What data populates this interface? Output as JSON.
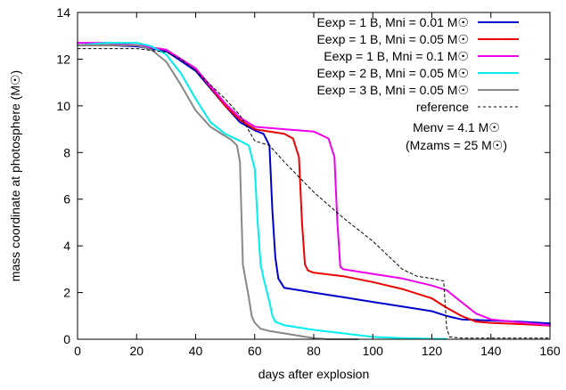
{
  "chart_data": {
    "type": "line",
    "xlabel": "days after explosion",
    "ylabel": "mass coordinate at photosphere (M☉)",
    "xlim": [
      0,
      160
    ],
    "ylim": [
      0,
      14
    ],
    "x_ticks": [
      "0",
      "20",
      "40",
      "60",
      "80",
      "100",
      "120",
      "140",
      "160"
    ],
    "y_ticks": [
      "0",
      "2",
      "4",
      "6",
      "8",
      "10",
      "12",
      "14"
    ],
    "grid": false,
    "legend_position": "top-right",
    "annotation": {
      "line1": "Menv = 4.1 M☉",
      "line2": "(Mzams = 25 M☉)"
    },
    "series": [
      {
        "name": "Eexp = 1 B, Mni = 0.01 M☉",
        "color": "#0000cc",
        "dash": "solid",
        "points": [
          [
            0,
            12.6
          ],
          [
            10,
            12.6
          ],
          [
            20,
            12.55
          ],
          [
            30,
            12.35
          ],
          [
            40,
            11.5
          ],
          [
            50,
            10.0
          ],
          [
            55,
            9.3
          ],
          [
            60,
            8.95
          ],
          [
            63,
            8.8
          ],
          [
            65,
            8.3
          ],
          [
            66,
            5.5
          ],
          [
            67,
            3.5
          ],
          [
            68,
            2.6
          ],
          [
            70,
            2.2
          ],
          [
            75,
            2.1
          ],
          [
            80,
            2.0
          ],
          [
            90,
            1.8
          ],
          [
            100,
            1.6
          ],
          [
            110,
            1.4
          ],
          [
            120,
            1.2
          ],
          [
            125,
            1.0
          ],
          [
            130,
            0.85
          ],
          [
            140,
            0.8
          ],
          [
            150,
            0.75
          ],
          [
            160,
            0.68
          ]
        ]
      },
      {
        "name": "Eexp = 1 B, Mni = 0.05 M☉",
        "color": "#ee0000",
        "dash": "solid",
        "points": [
          [
            0,
            12.6
          ],
          [
            10,
            12.6
          ],
          [
            20,
            12.6
          ],
          [
            30,
            12.4
          ],
          [
            40,
            11.6
          ],
          [
            50,
            10.0
          ],
          [
            55,
            9.4
          ],
          [
            60,
            9.0
          ],
          [
            65,
            8.9
          ],
          [
            70,
            8.8
          ],
          [
            73,
            8.6
          ],
          [
            75,
            7.8
          ],
          [
            76,
            5.0
          ],
          [
            77,
            3.2
          ],
          [
            78,
            2.95
          ],
          [
            80,
            2.85
          ],
          [
            90,
            2.7
          ],
          [
            100,
            2.45
          ],
          [
            110,
            2.15
          ],
          [
            120,
            1.75
          ],
          [
            125,
            1.35
          ],
          [
            130,
            1.0
          ],
          [
            135,
            0.75
          ],
          [
            140,
            0.7
          ],
          [
            150,
            0.65
          ],
          [
            160,
            0.58
          ]
        ]
      },
      {
        "name": "Eexp = 1 B, Mni = 0.1 M☉",
        "color": "#ee00ee",
        "dash": "solid",
        "points": [
          [
            0,
            12.7
          ],
          [
            10,
            12.7
          ],
          [
            20,
            12.6
          ],
          [
            30,
            12.4
          ],
          [
            40,
            11.6
          ],
          [
            50,
            10.1
          ],
          [
            55,
            9.5
          ],
          [
            60,
            9.1
          ],
          [
            70,
            9.0
          ],
          [
            80,
            8.9
          ],
          [
            85,
            8.6
          ],
          [
            87,
            7.8
          ],
          [
            88,
            5.0
          ],
          [
            89,
            3.1
          ],
          [
            90,
            3.0
          ],
          [
            100,
            2.8
          ],
          [
            110,
            2.6
          ],
          [
            120,
            2.3
          ],
          [
            125,
            2.1
          ],
          [
            130,
            1.6
          ],
          [
            135,
            1.1
          ],
          [
            140,
            0.85
          ],
          [
            150,
            0.72
          ],
          [
            160,
            0.6
          ]
        ]
      },
      {
        "name": "Eexp = 2 B, Mni = 0.05 M☉",
        "color": "#00eeee",
        "dash": "solid",
        "points": [
          [
            0,
            12.6
          ],
          [
            10,
            12.7
          ],
          [
            20,
            12.7
          ],
          [
            25,
            12.55
          ],
          [
            30,
            12.2
          ],
          [
            35,
            11.4
          ],
          [
            40,
            10.3
          ],
          [
            45,
            9.3
          ],
          [
            50,
            8.8
          ],
          [
            55,
            8.5
          ],
          [
            58,
            8.3
          ],
          [
            60,
            7.3
          ],
          [
            61,
            5.0
          ],
          [
            62,
            3.2
          ],
          [
            63,
            2.6
          ],
          [
            65,
            1.6
          ],
          [
            66,
            1.0
          ],
          [
            67,
            0.75
          ],
          [
            70,
            0.6
          ],
          [
            80,
            0.4
          ],
          [
            90,
            0.25
          ],
          [
            100,
            0.1
          ],
          [
            110,
            0.05
          ],
          [
            120,
            0.02
          ],
          [
            125,
            0.01
          ]
        ]
      },
      {
        "name": "Eexp = 3 B, Mni = 0.05 M☉",
        "color": "#888888",
        "dash": "solid",
        "points": [
          [
            0,
            12.6
          ],
          [
            10,
            12.6
          ],
          [
            20,
            12.6
          ],
          [
            25,
            12.4
          ],
          [
            30,
            11.9
          ],
          [
            35,
            10.9
          ],
          [
            40,
            9.8
          ],
          [
            45,
            9.1
          ],
          [
            50,
            8.7
          ],
          [
            52,
            8.55
          ],
          [
            54,
            8.3
          ],
          [
            55,
            7.6
          ],
          [
            56,
            3.2
          ],
          [
            57,
            2.5
          ],
          [
            58,
            1.8
          ],
          [
            59,
            1.0
          ],
          [
            60,
            0.7
          ],
          [
            62,
            0.45
          ],
          [
            65,
            0.35
          ],
          [
            70,
            0.25
          ],
          [
            75,
            0.15
          ],
          [
            80,
            0.05
          ],
          [
            85,
            0.0
          ],
          [
            95,
            0.0
          ]
        ]
      },
      {
        "name": "reference",
        "color": "#000000",
        "dash": "dashed",
        "points": [
          [
            0,
            12.45
          ],
          [
            20,
            12.45
          ],
          [
            30,
            12.3
          ],
          [
            35,
            12.0
          ],
          [
            40,
            11.5
          ],
          [
            50,
            10.3
          ],
          [
            55,
            9.6
          ],
          [
            60,
            8.5
          ],
          [
            65,
            8.3
          ],
          [
            70,
            7.6
          ],
          [
            80,
            6.3
          ],
          [
            90,
            5.2
          ],
          [
            100,
            4.2
          ],
          [
            110,
            3.0
          ],
          [
            115,
            2.7
          ],
          [
            120,
            2.6
          ],
          [
            124,
            2.5
          ],
          [
            125,
            0.5
          ],
          [
            126,
            0.1
          ],
          [
            130,
            0.05
          ],
          [
            160,
            0.05
          ]
        ]
      }
    ]
  }
}
